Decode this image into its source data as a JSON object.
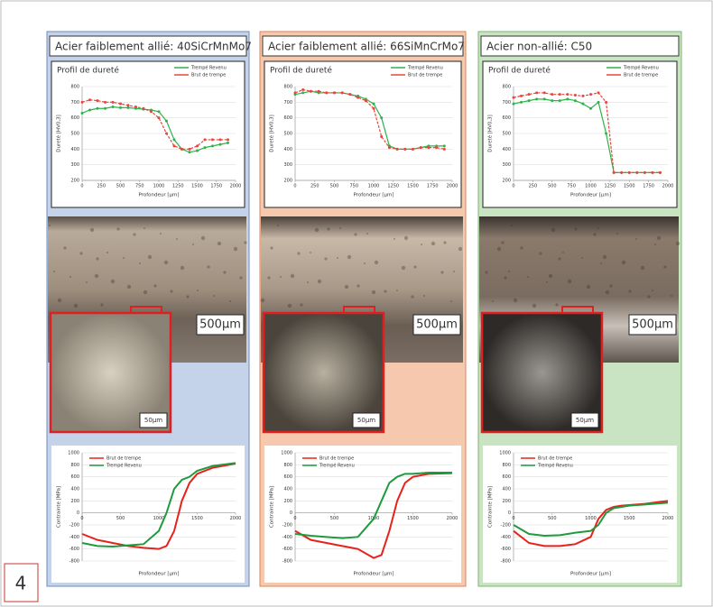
{
  "figure_number": "4",
  "panels": [
    {
      "title": "Acier faiblement allié: 40SiCrMnMo7",
      "scale_large": "500µm",
      "scale_small": "50µm"
    },
    {
      "title": "Acier faiblement allié: 66SiMnCrMo7",
      "scale_large": "500µm",
      "scale_small": "50µm"
    },
    {
      "title": "Acier non-allié: C50",
      "scale_large": "500µm",
      "scale_small": "50µm"
    }
  ],
  "chart_data": [
    {
      "type": "line",
      "title": "Profil de dureté",
      "x_label": "Profondeur [µm]",
      "y_label": "Dureté [HV0,3]",
      "legend": "upper right",
      "markers": true,
      "grid": true,
      "x": [
        0,
        100,
        200,
        300,
        400,
        500,
        600,
        700,
        800,
        900,
        1000,
        1100,
        1200,
        1300,
        1400,
        1500,
        1600,
        1700,
        1800,
        1900
      ],
      "series": [
        {
          "name": "Trempé Revenu",
          "color": "#2db34a",
          "values": [
            630,
            650,
            660,
            660,
            670,
            665,
            665,
            660,
            655,
            650,
            640,
            580,
            460,
            400,
            380,
            390,
            410,
            420,
            430,
            440
          ]
        },
        {
          "name": "Brut de trempe",
          "color": "#e8453c",
          "values": [
            700,
            715,
            710,
            700,
            700,
            690,
            680,
            670,
            660,
            640,
            600,
            500,
            420,
            400,
            400,
            420,
            460,
            460,
            460,
            460
          ]
        }
      ],
      "xlim": [
        0,
        2000
      ],
      "ylim": [
        200,
        800
      ],
      "xticks": [
        0,
        250,
        500,
        750,
        1000,
        1250,
        1500,
        1750,
        2000
      ],
      "yticks": [
        200,
        300,
        400,
        500,
        600,
        700,
        800
      ]
    },
    {
      "type": "line",
      "title": "Profil de dureté",
      "x_label": "Profondeur [µm]",
      "y_label": "Dureté [HV0,3]",
      "legend": "upper right",
      "markers": true,
      "grid": true,
      "x": [
        0,
        100,
        200,
        300,
        400,
        500,
        600,
        700,
        800,
        900,
        1000,
        1100,
        1200,
        1300,
        1400,
        1500,
        1600,
        1700,
        1800,
        1900
      ],
      "series": [
        {
          "name": "Trempé Revenu",
          "color": "#2db34a",
          "values": [
            750,
            760,
            770,
            760,
            760,
            760,
            760,
            750,
            740,
            720,
            690,
            600,
            420,
            400,
            400,
            400,
            410,
            420,
            420,
            420
          ]
        },
        {
          "name": "Brut de trempe",
          "color": "#e8453c",
          "values": [
            760,
            780,
            770,
            770,
            760,
            760,
            760,
            750,
            730,
            710,
            660,
            480,
            410,
            400,
            400,
            400,
            410,
            410,
            410,
            400
          ]
        }
      ],
      "xlim": [
        0,
        2000
      ],
      "ylim": [
        200,
        800
      ],
      "xticks": [
        0,
        250,
        500,
        750,
        1000,
        1250,
        1500,
        1750,
        2000
      ],
      "yticks": [
        200,
        300,
        400,
        500,
        600,
        700,
        800
      ]
    },
    {
      "type": "line",
      "title": "Profil de dureté",
      "x_label": "Profondeur [µm]",
      "y_label": "Dureté [HV0,3]",
      "legend": "upper right",
      "markers": true,
      "grid": true,
      "x": [
        0,
        100,
        200,
        300,
        400,
        500,
        600,
        700,
        800,
        900,
        1000,
        1100,
        1200,
        1300,
        1400,
        1500,
        1600,
        1700,
        1800,
        1900
      ],
      "series": [
        {
          "name": "Trempé Revenu",
          "color": "#2db34a",
          "values": [
            690,
            700,
            710,
            720,
            720,
            710,
            710,
            720,
            710,
            690,
            660,
            700,
            500,
            250,
            250,
            250,
            250,
            250,
            250,
            250
          ]
        },
        {
          "name": "Brut de trempe",
          "color": "#e8453c",
          "values": [
            730,
            740,
            750,
            760,
            760,
            750,
            750,
            750,
            745,
            740,
            750,
            760,
            700,
            250,
            250,
            250,
            250,
            250,
            250,
            250
          ]
        }
      ],
      "xlim": [
        0,
        2000
      ],
      "ylim": [
        200,
        800
      ],
      "xticks": [
        0,
        250,
        500,
        750,
        1000,
        1250,
        1500,
        1750,
        2000
      ],
      "yticks": [
        200,
        300,
        400,
        500,
        600,
        700,
        800
      ]
    },
    {
      "type": "line",
      "x_label": "Profondeur [µm]",
      "y_label": "Contrainte [MPa]",
      "legend": "upper left",
      "markers": false,
      "grid": true,
      "x": [
        0,
        200,
        400,
        600,
        800,
        1000,
        1100,
        1200,
        1300,
        1400,
        1500,
        1700,
        2000
      ],
      "series": [
        {
          "name": "Brut de trempe",
          "color": "#e8221b",
          "values": [
            -350,
            -450,
            -500,
            -550,
            -580,
            -600,
            -550,
            -300,
            200,
            500,
            650,
            750,
            820
          ]
        },
        {
          "name": "Trempé Revenu",
          "color": "#1f9a3d",
          "values": [
            -500,
            -550,
            -560,
            -540,
            -520,
            -300,
            0,
            400,
            550,
            600,
            700,
            780,
            830
          ]
        }
      ],
      "xlim": [
        0,
        2000
      ],
      "ylim": [
        -800,
        1000
      ],
      "xticks": [
        0,
        500,
        1000,
        1500,
        2000
      ],
      "yticks": [
        -800,
        -600,
        -400,
        -200,
        0,
        200,
        400,
        600,
        800,
        1000
      ]
    },
    {
      "type": "line",
      "x_label": "Profondeur [µm]",
      "y_label": "Contrainte [MPa]",
      "legend": "upper left",
      "markers": false,
      "grid": true,
      "x": [
        0,
        200,
        400,
        600,
        800,
        1000,
        1100,
        1200,
        1300,
        1400,
        1500,
        1700,
        2000
      ],
      "series": [
        {
          "name": "Brut de trempe",
          "color": "#e8221b",
          "values": [
            -300,
            -450,
            -500,
            -550,
            -600,
            -750,
            -700,
            -300,
            200,
            500,
            600,
            650,
            660
          ]
        },
        {
          "name": "Trempé Revenu",
          "color": "#1f9a3d",
          "values": [
            -350,
            -380,
            -400,
            -420,
            -400,
            -100,
            200,
            500,
            600,
            650,
            650,
            670,
            670
          ]
        }
      ],
      "xlim": [
        0,
        2000
      ],
      "ylim": [
        -800,
        1000
      ],
      "xticks": [
        0,
        500,
        1000,
        1500,
        2000
      ],
      "yticks": [
        -800,
        -600,
        -400,
        -200,
        0,
        200,
        400,
        600,
        800,
        1000
      ]
    },
    {
      "type": "line",
      "x_label": "Profondeur [µm]",
      "y_label": "Contrainte [MPa]",
      "legend": "upper left",
      "markers": false,
      "grid": true,
      "x": [
        0,
        200,
        400,
        600,
        800,
        1000,
        1100,
        1200,
        1300,
        1400,
        1500,
        1700,
        2000
      ],
      "series": [
        {
          "name": "Brut de trempe",
          "color": "#e8221b",
          "values": [
            -300,
            -500,
            -550,
            -550,
            -520,
            -400,
            -100,
            50,
            100,
            120,
            130,
            150,
            200
          ]
        },
        {
          "name": "Trempé Revenu",
          "color": "#1f9a3d",
          "values": [
            -200,
            -350,
            -380,
            -370,
            -330,
            -300,
            -200,
            0,
            80,
            100,
            120,
            140,
            170
          ]
        }
      ],
      "xlim": [
        0,
        2000
      ],
      "ylim": [
        -800,
        1000
      ],
      "xticks": [
        0,
        500,
        1000,
        1500,
        2000
      ],
      "yticks": [
        -800,
        -600,
        -400,
        -200,
        0,
        200,
        400,
        600,
        800,
        1000
      ]
    }
  ]
}
